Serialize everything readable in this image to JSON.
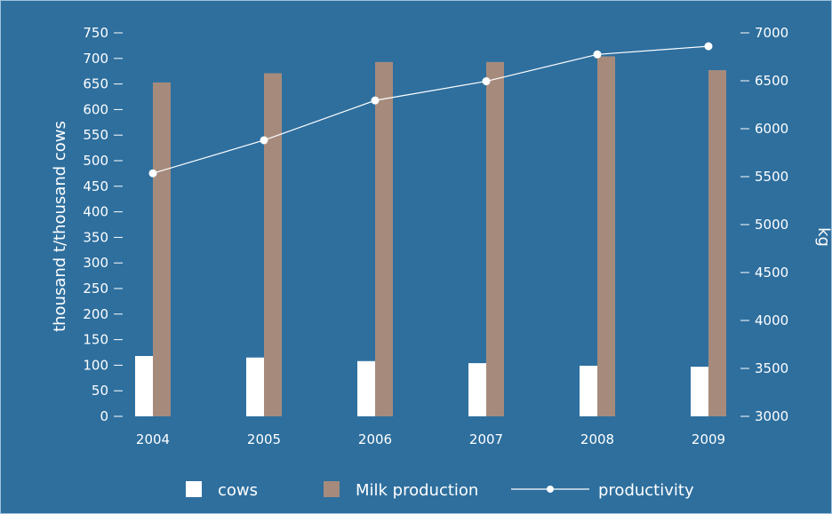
{
  "chart_data": {
    "type": "bar",
    "categories": [
      "2004",
      "2005",
      "2006",
      "2007",
      "2008",
      "2009"
    ],
    "series": [
      {
        "name": "cows",
        "type": "bar",
        "axis": "left",
        "values": [
          118,
          115,
          108,
          104,
          99,
          97
        ],
        "color": "#ffffff"
      },
      {
        "name": "Milk production",
        "type": "bar",
        "axis": "left",
        "values": [
          653,
          671,
          693,
          693,
          704,
          677
        ],
        "color": "#a68b7c"
      },
      {
        "name": "productivity",
        "type": "line",
        "axis": "right",
        "values": [
          5535,
          5880,
          6295,
          6495,
          6775,
          6860
        ],
        "color": "#ffffff"
      }
    ],
    "ylabel": "thousand t/thousand cows",
    "y2label": "kg",
    "ylim": [
      0,
      750
    ],
    "y2lim": [
      3000,
      7000
    ],
    "yticks": [
      "0",
      "50",
      "100",
      "150",
      "200",
      "250",
      "300",
      "350",
      "400",
      "450",
      "500",
      "550",
      "600",
      "650",
      "700",
      "750"
    ],
    "y2ticks": [
      "3000",
      "3500",
      "4000",
      "4500",
      "5000",
      "5500",
      "6000",
      "6500",
      "7000"
    ],
    "grid": false,
    "legend_position": "bottom",
    "colors": {
      "background": "#2e6f9e",
      "frame": "#9fc2dc",
      "axis": "#ffffff"
    }
  }
}
